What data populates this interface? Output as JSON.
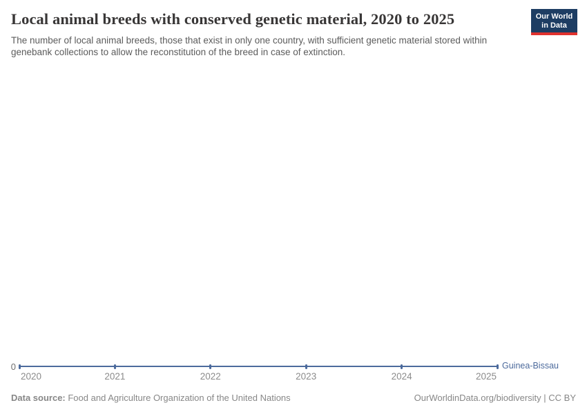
{
  "header": {
    "title": "Local animal breeds with conserved genetic material, 2020 to 2025",
    "subtitle": "The number of local animal breeds, those that exist in only one country, with sufficient genetic material stored within genebank collections to allow the reconstitution of the breed in case of extinction."
  },
  "logo": {
    "line1": "Our World",
    "line2": "in Data",
    "bg_color": "#1d3d63",
    "bar_color": "#e0322e"
  },
  "chart_data": {
    "type": "line",
    "title": "Local animal breeds with conserved genetic material, 2020 to 2025",
    "x": [
      2020,
      2021,
      2022,
      2023,
      2024,
      2025
    ],
    "x_tick_labels": [
      "2020",
      "2021",
      "2022",
      "2023",
      "2024",
      "2025"
    ],
    "series": [
      {
        "name": "Guinea-Bissau",
        "values": [
          0,
          0,
          0,
          0,
          0,
          0
        ],
        "color": "#4C6A9C"
      }
    ],
    "y_axis_ticks": [
      "0"
    ],
    "ylim": [
      0,
      0
    ],
    "grid": false,
    "xlabel": "",
    "ylabel": "",
    "legend_position": "end-of-line"
  },
  "footer": {
    "source_label": "Data source:",
    "source_text": " Food and Agriculture Organization of the United Nations",
    "attribution": "OurWorldinData.org/biodiversity | CC BY"
  }
}
